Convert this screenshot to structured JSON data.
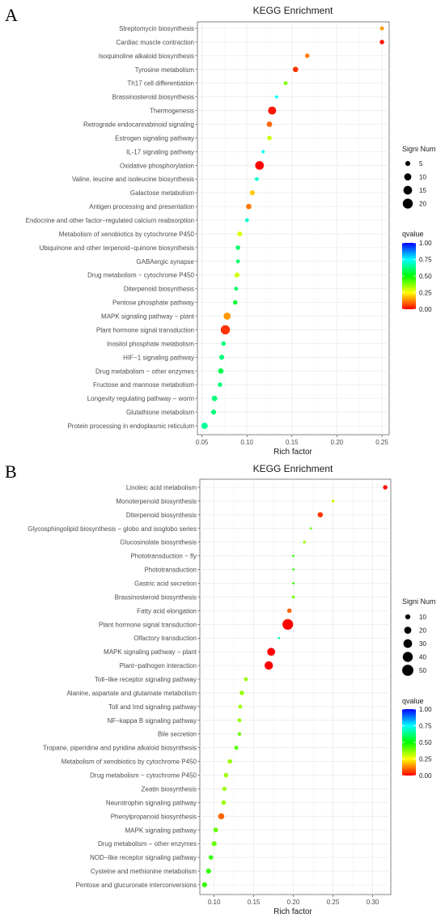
{
  "chart_data": [
    {
      "panel_label": "A",
      "type": "scatter",
      "title": "KEGG Enrichment",
      "xlabel": "Rich factor",
      "ylabel": "",
      "xlim": [
        0.045,
        0.258
      ],
      "xticks": [
        0.05,
        0.1,
        0.15,
        0.2,
        0.25
      ],
      "xtick_labels": [
        "0.05",
        "0.10",
        "0.15",
        "0.20",
        "0.25"
      ],
      "grid": true,
      "legend_position": "right",
      "size_legend": {
        "title": "Signi Num",
        "values": [
          5,
          10,
          15,
          20
        ]
      },
      "color_legend": {
        "title": "qvalue",
        "ticks": [
          1.0,
          0.75,
          0.5,
          0.25,
          0.0
        ],
        "tick_labels": [
          "1.00",
          "0.75",
          "0.50",
          "0.25",
          "0.00"
        ]
      },
      "points": [
        {
          "term": "Streptomycin biosynthesis",
          "rich_factor": 0.25,
          "count": 3,
          "qvalue": 0.15
        },
        {
          "term": "Cardiac muscle contraction",
          "rich_factor": 0.25,
          "count": 4,
          "qvalue": 0.02
        },
        {
          "term": "Isoquinoline alkaloid biosynthesis",
          "rich_factor": 0.167,
          "count": 4,
          "qvalue": 0.12
        },
        {
          "term": "Tyrosine metabolism",
          "rich_factor": 0.154,
          "count": 6,
          "qvalue": 0.05
        },
        {
          "term": "Th17 cell differentiation",
          "rich_factor": 0.143,
          "count": 3,
          "qvalue": 0.38
        },
        {
          "term": "Brassinosteroid biosynthesis",
          "rich_factor": 0.133,
          "count": 2,
          "qvalue": 0.75
        },
        {
          "term": "Thermogenesis",
          "rich_factor": 0.128,
          "count": 13,
          "qvalue": 0.02
        },
        {
          "term": "Retrograde endocannabinoid signaling",
          "rich_factor": 0.125,
          "count": 6,
          "qvalue": 0.1
        },
        {
          "term": "Estrogen signaling pathway",
          "rich_factor": 0.125,
          "count": 4,
          "qvalue": 0.3
        },
        {
          "term": "IL-17 signaling pathway",
          "rich_factor": 0.118,
          "count": 2,
          "qvalue": 0.75
        },
        {
          "term": "Oxidative phosphorylation",
          "rich_factor": 0.114,
          "count": 15,
          "qvalue": 0.0
        },
        {
          "term": "Valine, leucine and isoleucine biosynthesis",
          "rich_factor": 0.111,
          "count": 3,
          "qvalue": 0.7
        },
        {
          "term": "Galactose metabolism",
          "rich_factor": 0.106,
          "count": 5,
          "qvalue": 0.2
        },
        {
          "term": "Antigen processing and presentation",
          "rich_factor": 0.102,
          "count": 6,
          "qvalue": 0.12
        },
        {
          "term": "Endocrine and other factor−regulated calcium reabsorption",
          "rich_factor": 0.1,
          "count": 3,
          "qvalue": 0.7
        },
        {
          "term": "Metabolism of xenobiotics by cytochrome P450",
          "rich_factor": 0.092,
          "count": 5,
          "qvalue": 0.28
        },
        {
          "term": "Ubiquinone and other terpenoid−quinone biosynthesis",
          "rich_factor": 0.09,
          "count": 4,
          "qvalue": 0.6
        },
        {
          "term": "GABAergic synapse",
          "rich_factor": 0.09,
          "count": 3,
          "qvalue": 0.6
        },
        {
          "term": "Drug metabolism − cytochrome P450",
          "rich_factor": 0.089,
          "count": 5,
          "qvalue": 0.3
        },
        {
          "term": "Diterpenoid biosynthesis",
          "rich_factor": 0.088,
          "count": 3,
          "qvalue": 0.6
        },
        {
          "term": "Pentose phosphate pathway",
          "rich_factor": 0.087,
          "count": 4,
          "qvalue": 0.55
        },
        {
          "term": "MAPK signaling pathway − plant",
          "rich_factor": 0.078,
          "count": 10,
          "qvalue": 0.15
        },
        {
          "term": "Plant hormone signal transduction",
          "rich_factor": 0.076,
          "count": 17,
          "qvalue": 0.05
        },
        {
          "term": "Inositol phosphate metabolism",
          "rich_factor": 0.074,
          "count": 4,
          "qvalue": 0.62
        },
        {
          "term": "HIF−1 signaling pathway",
          "rich_factor": 0.072,
          "count": 5,
          "qvalue": 0.62
        },
        {
          "term": "Drug metabolism − other enzymes",
          "rich_factor": 0.071,
          "count": 6,
          "qvalue": 0.58
        },
        {
          "term": "Fructose and mannose metabolism",
          "rich_factor": 0.07,
          "count": 4,
          "qvalue": 0.62
        },
        {
          "term": "Longevity regulating pathway − worm",
          "rich_factor": 0.064,
          "count": 6,
          "qvalue": 0.62
        },
        {
          "term": "Glutathione metabolism",
          "rich_factor": 0.063,
          "count": 5,
          "qvalue": 0.62
        },
        {
          "term": "Protein processing in endoplasmic reticulum",
          "rich_factor": 0.053,
          "count": 8,
          "qvalue": 0.65
        }
      ]
    },
    {
      "panel_label": "B",
      "type": "scatter",
      "title": "KEGG Enrichment",
      "xlabel": "Rich factor",
      "ylabel": "",
      "xlim": [
        0.082,
        0.323
      ],
      "xticks": [
        0.1,
        0.15,
        0.2,
        0.25,
        0.3
      ],
      "xtick_labels": [
        "0.10",
        "0.15",
        "0.20",
        "0.25",
        "0.30"
      ],
      "grid": true,
      "legend_position": "right",
      "size_legend": {
        "title": "Signi Num",
        "values": [
          10,
          20,
          30,
          40,
          50
        ]
      },
      "color_legend": {
        "title": "qvalue",
        "ticks": [
          1.0,
          0.75,
          0.5,
          0.25,
          0.0
        ],
        "tick_labels": [
          "1.00",
          "0.75",
          "0.50",
          "0.25",
          "0.00"
        ]
      },
      "points": [
        {
          "term": "Linoleic acid metabolism",
          "rich_factor": 0.316,
          "count": 8,
          "qvalue": 0.02
        },
        {
          "term": "Monoterpenoid biosynthesis",
          "rich_factor": 0.25,
          "count": 3,
          "qvalue": 0.3
        },
        {
          "term": "Diterpenoid biosynthesis",
          "rich_factor": 0.234,
          "count": 11,
          "qvalue": 0.05
        },
        {
          "term": "Glycosphingolipid biosynthesis − globo and isoglobo series",
          "rich_factor": 0.222,
          "count": 2,
          "qvalue": 0.4
        },
        {
          "term": "Glucosinolate biosynthesis",
          "rich_factor": 0.214,
          "count": 3,
          "qvalue": 0.35
        },
        {
          "term": "Phototransduction − fly",
          "rich_factor": 0.2,
          "count": 2,
          "qvalue": 0.45
        },
        {
          "term": "Phototransduction",
          "rich_factor": 0.2,
          "count": 2,
          "qvalue": 0.45
        },
        {
          "term": "Gastric acid secretion",
          "rich_factor": 0.2,
          "count": 2,
          "qvalue": 0.45
        },
        {
          "term": "Brassinosteroid biosynthesis",
          "rich_factor": 0.2,
          "count": 3,
          "qvalue": 0.4
        },
        {
          "term": "Fatty acid elongation",
          "rich_factor": 0.195,
          "count": 8,
          "qvalue": 0.1
        },
        {
          "term": "Plant hormone signal transduction",
          "rich_factor": 0.193,
          "count": 45,
          "qvalue": 0.0
        },
        {
          "term": "Olfactory transduction",
          "rich_factor": 0.182,
          "count": 2,
          "qvalue": 0.65
        },
        {
          "term": "MAPK signaling pathway − plant",
          "rich_factor": 0.172,
          "count": 25,
          "qvalue": 0.0
        },
        {
          "term": "Plant−pathogen interaction",
          "rich_factor": 0.169,
          "count": 28,
          "qvalue": 0.0
        },
        {
          "term": "Toll−like receptor signaling pathway",
          "rich_factor": 0.14,
          "count": 6,
          "qvalue": 0.35
        },
        {
          "term": "Alanine, aspartate and glutamate metabolism",
          "rich_factor": 0.135,
          "count": 8,
          "qvalue": 0.35
        },
        {
          "term": "Toll and Imd signaling pathway",
          "rich_factor": 0.133,
          "count": 6,
          "qvalue": 0.35
        },
        {
          "term": "NF−kappa B signaling pathway",
          "rich_factor": 0.132,
          "count": 6,
          "qvalue": 0.35
        },
        {
          "term": "Bile secretion",
          "rich_factor": 0.132,
          "count": 5,
          "qvalue": 0.4
        },
        {
          "term": "Tropane, piperidine and pyridine alkaloid biosynthesis",
          "rich_factor": 0.128,
          "count": 6,
          "qvalue": 0.42
        },
        {
          "term": "Metabolism of xenobiotics by cytochrome P450",
          "rich_factor": 0.12,
          "count": 8,
          "qvalue": 0.35
        },
        {
          "term": "Drug metabolism − cytochrome P450",
          "rich_factor": 0.115,
          "count": 8,
          "qvalue": 0.35
        },
        {
          "term": "Zeatin biosynthesis",
          "rich_factor": 0.113,
          "count": 7,
          "qvalue": 0.35
        },
        {
          "term": "Neurotrophin signaling pathway",
          "rich_factor": 0.112,
          "count": 8,
          "qvalue": 0.35
        },
        {
          "term": "Phenylpropanoid biosynthesis",
          "rich_factor": 0.109,
          "count": 15,
          "qvalue": 0.1
        },
        {
          "term": "MAPK signaling pathway",
          "rich_factor": 0.102,
          "count": 9,
          "qvalue": 0.4
        },
        {
          "term": "Drug metabolism − other enzymes",
          "rich_factor": 0.1,
          "count": 10,
          "qvalue": 0.4
        },
        {
          "term": "NOD−like receptor signaling pathway",
          "rich_factor": 0.096,
          "count": 8,
          "qvalue": 0.45
        },
        {
          "term": "Cysteine and methionine metabolism",
          "rich_factor": 0.093,
          "count": 10,
          "qvalue": 0.45
        },
        {
          "term": "Pentose and glucuronate interconversions",
          "rich_factor": 0.088,
          "count": 10,
          "qvalue": 0.45
        }
      ]
    }
  ]
}
